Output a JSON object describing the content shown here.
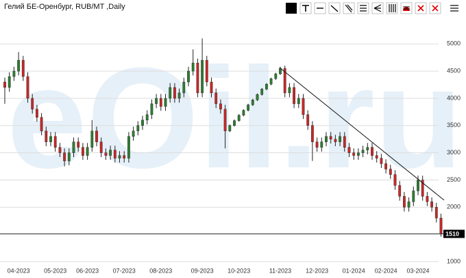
{
  "chart_data": {
    "type": "candlestick",
    "title": "Гелий БЕ-Оренбург, RUB/MT ,Daily",
    "watermark": "eOil.ru",
    "categories": [
      null,
      null,
      null,
      "04-2023",
      null,
      null,
      null,
      null,
      null,
      null,
      null,
      "05-2023",
      null,
      null,
      null,
      null,
      null,
      null,
      "06-2023",
      null,
      null,
      null,
      null,
      null,
      null,
      null,
      "07-2023",
      null,
      null,
      null,
      null,
      null,
      null,
      null,
      "08-2023",
      null,
      null,
      null,
      null,
      null,
      null,
      null,
      null,
      "09-2023",
      null,
      null,
      null,
      null,
      null,
      null,
      null,
      "10-2023",
      null,
      null,
      null,
      null,
      null,
      null,
      null,
      null,
      "11-2023",
      null,
      null,
      null,
      null,
      null,
      null,
      null,
      "12-2023",
      null,
      null,
      null,
      null,
      null,
      null,
      null,
      "01-2024",
      null,
      null,
      null,
      null,
      null,
      null,
      "02-2024",
      null,
      null,
      null,
      null,
      null,
      null,
      "03-2024",
      null,
      null,
      null,
      null,
      null
    ],
    "open": [
      4300,
      4200,
      4400,
      4500,
      4700,
      4400,
      4000,
      3800,
      3650,
      3400,
      3200,
      3300,
      3100,
      3000,
      2850,
      3000,
      3200,
      3100,
      2950,
      3100,
      3400,
      3200,
      3000,
      2950,
      3050,
      2900,
      2950,
      2900,
      3300,
      3400,
      3500,
      3600,
      3700,
      3900,
      4000,
      3850,
      4000,
      4200,
      4000,
      4100,
      4300,
      4500,
      4650,
      4100,
      4700,
      4300,
      4100,
      3900,
      3800,
      3400,
      3500,
      3590,
      3690,
      3780,
      3880,
      3970,
      4070,
      4170,
      4260,
      4360,
      4450,
      4550,
      4100,
      4200,
      3900,
      4000,
      3700,
      3500,
      3200,
      3100,
      3200,
      3300,
      3250,
      3200,
      3300,
      3100,
      3000,
      2950,
      3000,
      3050,
      3100,
      2950,
      2900,
      2800,
      2700,
      2600,
      2400,
      2200,
      2000,
      2100,
      2300,
      2500,
      2200,
      2100,
      2000,
      1800
    ],
    "high": [
      4380,
      4480,
      4580,
      4850,
      4780,
      4480,
      4080,
      3880,
      3730,
      3480,
      3380,
      3380,
      3180,
      3080,
      3080,
      3280,
      3280,
      3180,
      3180,
      3600,
      3480,
      3280,
      3080,
      3130,
      3130,
      3030,
      3030,
      3380,
      3480,
      3580,
      3680,
      3780,
      3980,
      4080,
      4080,
      4080,
      4280,
      4280,
      4180,
      4380,
      4580,
      4900,
      4730,
      5100,
      4780,
      4380,
      4180,
      3980,
      3880,
      3520,
      3610,
      3710,
      3800,
      3900,
      3990,
      4090,
      4190,
      4280,
      4380,
      4470,
      4580,
      4600,
      4280,
      4280,
      4080,
      4080,
      3780,
      3580,
      3280,
      3280,
      3380,
      3380,
      3330,
      3380,
      3380,
      3180,
      3080,
      3080,
      3130,
      3180,
      3180,
      3030,
      2980,
      2880,
      2780,
      2680,
      2480,
      2280,
      2180,
      2380,
      2580,
      2580,
      2280,
      2180,
      2080,
      1880
    ],
    "low": [
      3900,
      4120,
      4320,
      4420,
      4320,
      3920,
      3720,
      3570,
      3320,
      3120,
      3120,
      3020,
      2920,
      2750,
      2770,
      2920,
      3020,
      2870,
      2870,
      3020,
      3120,
      2920,
      2870,
      2870,
      2820,
      2820,
      2820,
      2820,
      3220,
      3320,
      3420,
      3520,
      3620,
      3820,
      3770,
      3770,
      3920,
      3920,
      3920,
      4020,
      4220,
      4420,
      4020,
      4020,
      4220,
      4020,
      3820,
      3720,
      3080,
      3380,
      3480,
      3570,
      3670,
      3760,
      3860,
      3950,
      4050,
      4150,
      4240,
      4340,
      4430,
      4020,
      4020,
      3820,
      3820,
      3620,
      3420,
      2850,
      3020,
      3020,
      3120,
      3170,
      3120,
      3120,
      3020,
      2920,
      2870,
      2870,
      2920,
      2970,
      2870,
      2820,
      2720,
      2620,
      2520,
      2320,
      2120,
      1920,
      1920,
      2020,
      2220,
      2120,
      2020,
      1920,
      1720,
      1460
    ],
    "close": [
      4200,
      4400,
      4500,
      4700,
      4400,
      4000,
      3800,
      3650,
      3400,
      3200,
      3300,
      3100,
      3000,
      2850,
      3000,
      3200,
      3100,
      2950,
      3100,
      3400,
      3200,
      3000,
      2950,
      3050,
      2900,
      2950,
      2900,
      3300,
      3400,
      3500,
      3600,
      3700,
      3900,
      4000,
      3850,
      4000,
      4200,
      4000,
      4100,
      4300,
      4500,
      4650,
      4100,
      4700,
      4300,
      4100,
      3900,
      3800,
      3400,
      3500,
      3590,
      3690,
      3780,
      3880,
      3970,
      4070,
      4170,
      4260,
      4360,
      4450,
      4550,
      4100,
      4200,
      3900,
      4000,
      3700,
      3500,
      3200,
      3100,
      3200,
      3300,
      3250,
      3200,
      3300,
      3100,
      3000,
      2950,
      3000,
      3050,
      3100,
      2950,
      2900,
      2800,
      2700,
      2600,
      2400,
      2200,
      2000,
      2100,
      2300,
      2500,
      2200,
      2100,
      2000,
      1800,
      1510
    ],
    "up_color": "#2e7d32",
    "down_color": "#c62828",
    "last_price": 1510,
    "ylim": [
      850,
      5530
    ],
    "yticks": [
      1000,
      2000,
      2500,
      3000,
      3500,
      4000,
      4500,
      5000
    ],
    "grid": true
  }
}
